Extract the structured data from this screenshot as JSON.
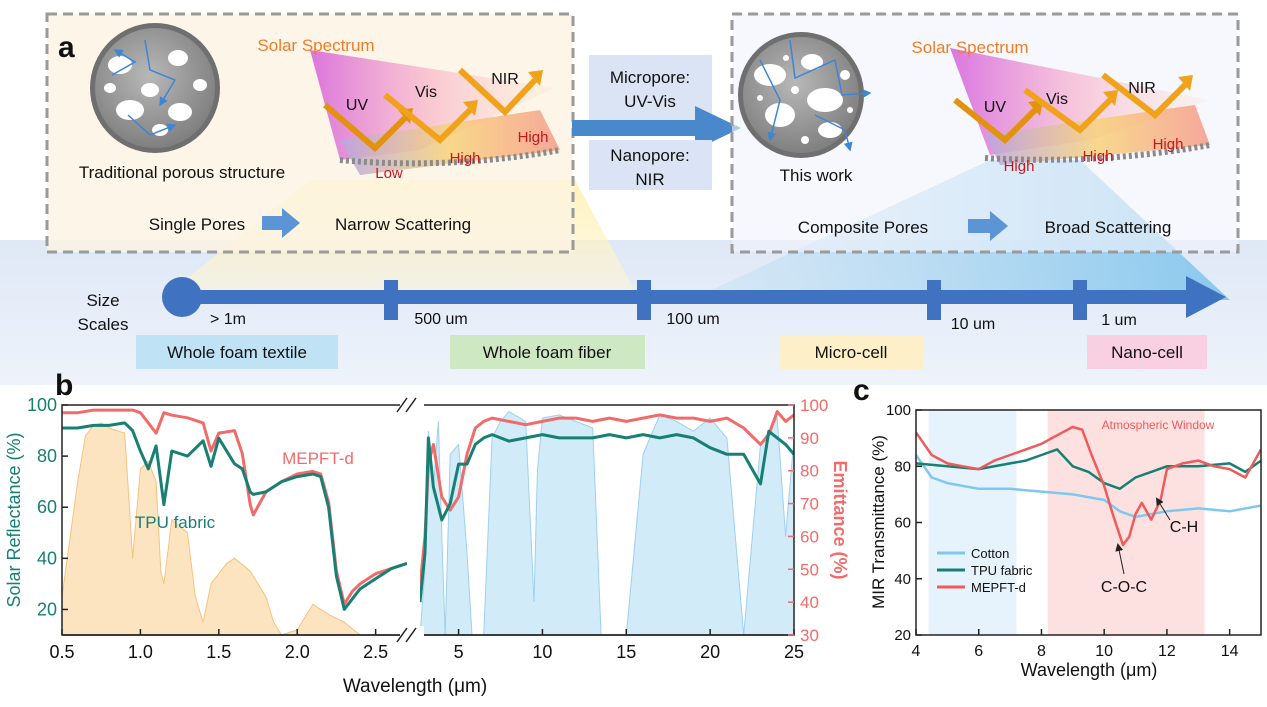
{
  "panel_a": {
    "label": "a",
    "left_box": {
      "caption": "Traditional porous structure",
      "spectrum_title": "Solar Spectrum",
      "bands": [
        "UV",
        "Vis",
        "NIR"
      ],
      "levels": [
        "Low",
        "High",
        "High"
      ],
      "flow_from": "Single Pores",
      "flow_to": "Narrow Scattering"
    },
    "middle": {
      "micropore_line1": "Micropore:",
      "micropore_line2": "UV-Vis",
      "nanopore_line1": "Nanopore:",
      "nanopore_line2": "NIR"
    },
    "right_box": {
      "caption": "This work",
      "spectrum_title": "Solar Spectrum",
      "bands": [
        "UV",
        "Vis",
        "NIR"
      ],
      "levels": [
        "High",
        "High",
        "High"
      ],
      "flow_from": "Composite Pores",
      "flow_to": "Broad Scattering"
    },
    "scale": {
      "title_line1": "Size",
      "title_line2": "Scales",
      "ticks": [
        "> 1m",
        "500 um",
        "100 um",
        "10 um",
        "1 um"
      ],
      "categories": [
        {
          "label": "Whole foam textile",
          "color": "#bfe3f5"
        },
        {
          "label": "Whole foam fiber",
          "color": "#cfe8c4"
        },
        {
          "label": "Micro-cell",
          "color": "#fdf0c8"
        },
        {
          "label": "Nano-cell",
          "color": "#f9cfe2"
        }
      ]
    }
  },
  "panel_b": {
    "label": "b",
    "chart_data": {
      "type": "line",
      "xlabel": "Wavelength (μm)",
      "ylabel_left": "Solar Reflectance (%)",
      "ylabel_right": "Emittance (%)",
      "x_ticks_left": [
        "0.5",
        "1.0",
        "1.5",
        "2.0",
        "2.5"
      ],
      "x_ticks_right": [
        "5",
        "10",
        "15",
        "20",
        "25"
      ],
      "y_ticks_left": [
        "20",
        "40",
        "60",
        "80",
        "100"
      ],
      "y_ticks_right": [
        "30",
        "40",
        "50",
        "60",
        "70",
        "80",
        "90",
        "100"
      ],
      "xlim_left": [
        0.5,
        2.7
      ],
      "xlim_right": [
        2.7,
        25
      ],
      "ylim_left": [
        10,
        100
      ],
      "ylim_right": [
        30,
        100
      ],
      "series": [
        {
          "name": "MEPFT-d",
          "color": "#f26b6b",
          "x_left": [
            0.5,
            0.6,
            0.7,
            0.8,
            0.9,
            0.95,
            1.0,
            1.05,
            1.1,
            1.15,
            1.2,
            1.3,
            1.4,
            1.45,
            1.5,
            1.6,
            1.65,
            1.7,
            1.72,
            1.8,
            1.9,
            2.0,
            2.1,
            2.15,
            2.2,
            2.25,
            2.3,
            2.35,
            2.4,
            2.5,
            2.6,
            2.7
          ],
          "y_left": [
            97,
            97,
            98,
            98,
            98,
            98,
            97,
            93,
            89,
            97,
            96,
            95,
            93,
            82,
            89,
            90,
            81,
            61,
            57,
            66,
            70,
            73,
            74,
            73,
            62,
            35,
            22,
            27,
            30,
            34,
            36,
            38
          ],
          "x_right": [
            2.7,
            3.0,
            3.2,
            3.5,
            4.0,
            4.5,
            5.0,
            5.5,
            6.0,
            6.5,
            7,
            8,
            9,
            10,
            11,
            12,
            13,
            14,
            15,
            16,
            17,
            18,
            19,
            20,
            21,
            22,
            23,
            23.5,
            24,
            24.5,
            25
          ],
          "y_right": [
            45,
            60,
            82,
            88,
            72,
            68,
            72,
            85,
            93,
            95,
            96,
            95,
            94,
            95,
            96,
            96,
            95,
            96,
            95,
            96,
            97,
            96,
            96,
            95,
            96,
            93,
            88,
            91,
            98,
            95,
            97
          ]
        },
        {
          "name": "TPU fabric",
          "color": "#177f73",
          "x_left": [
            0.5,
            0.6,
            0.7,
            0.8,
            0.9,
            0.95,
            1.0,
            1.05,
            1.1,
            1.15,
            1.2,
            1.3,
            1.4,
            1.45,
            1.5,
            1.6,
            1.65,
            1.7,
            1.72,
            1.8,
            1.9,
            2.0,
            2.1,
            2.15,
            2.2,
            2.25,
            2.3,
            2.35,
            2.4,
            2.5,
            2.6,
            2.7
          ],
          "y_left": [
            91,
            91,
            92,
            92,
            93,
            90,
            82,
            75,
            84,
            61,
            82,
            80,
            86,
            76,
            87,
            77,
            75,
            66,
            65,
            66,
            70,
            72,
            73,
            72,
            60,
            33,
            20,
            24,
            28,
            32,
            36,
            38
          ],
          "x_right": [
            2.7,
            3.0,
            3.2,
            3.5,
            4.0,
            4.5,
            5.0,
            5.5,
            6.0,
            6.5,
            7,
            8,
            9,
            10,
            11,
            12,
            13,
            14,
            15,
            16,
            17,
            18,
            19,
            20,
            21,
            22,
            23,
            23.5,
            24,
            24.5,
            25
          ],
          "y_right": [
            40,
            55,
            90,
            75,
            65,
            70,
            82,
            82,
            88,
            90,
            91,
            89,
            90,
            91,
            90,
            90,
            90,
            91,
            90,
            91,
            90,
            91,
            90,
            87,
            85,
            85,
            76,
            92,
            90,
            88,
            85
          ]
        }
      ],
      "fill_left_name": "solar spectrum",
      "fill_right_name": "atmospheric transmittance",
      "annotations": [
        "MEPFT-d",
        "TPU fabric"
      ]
    }
  },
  "panel_c": {
    "label": "c",
    "chart_data": {
      "type": "line",
      "xlabel": "Wavelength (μm)",
      "ylabel": "MIR Transmittance (%)",
      "xlim": [
        4,
        15
      ],
      "ylim": [
        20,
        100
      ],
      "x_ticks": [
        "4",
        "6",
        "8",
        "10",
        "12",
        "14"
      ],
      "y_ticks": [
        "20",
        "40",
        "60",
        "80",
        "100"
      ],
      "window_label": "Atmospheric Window",
      "annotations": [
        "C-H",
        "C-O-C"
      ],
      "series": [
        {
          "name": "Cotton",
          "color": "#7ec8f0",
          "x": [
            4,
            4.5,
            5,
            6,
            7,
            8,
            9,
            10,
            10.5,
            11,
            11.5,
            12,
            13,
            14,
            15
          ],
          "y": [
            84,
            76,
            74,
            72,
            72,
            71,
            70,
            68,
            64,
            62,
            63,
            64,
            65,
            64,
            66
          ]
        },
        {
          "name": "TPU fabric",
          "color": "#177f73",
          "x": [
            4,
            5,
            6,
            7,
            7.5,
            8,
            8.5,
            9,
            9.5,
            10,
            10.5,
            11,
            11.5,
            12,
            13,
            14,
            14.5,
            15
          ],
          "y": [
            81,
            80,
            79,
            81,
            82,
            84,
            86,
            80,
            78,
            74,
            72,
            76,
            78,
            80,
            80,
            81,
            78,
            82
          ]
        },
        {
          "name": "MEPFT-d",
          "color": "#ef5b5b",
          "x": [
            4,
            4.5,
            5,
            5.5,
            6,
            6.5,
            7,
            7.5,
            8,
            8.5,
            9,
            9.3,
            9.6,
            10,
            10.3,
            10.6,
            10.8,
            11,
            11.2,
            11.5,
            11.8,
            12,
            12.5,
            13,
            13.5,
            14,
            14.5,
            15
          ],
          "y": [
            92,
            84,
            81,
            80,
            79,
            82,
            84,
            86,
            88,
            91,
            94,
            93,
            84,
            73,
            62,
            52,
            55,
            63,
            67,
            61,
            68,
            79,
            81,
            82,
            80,
            79,
            76,
            86
          ]
        }
      ]
    }
  }
}
